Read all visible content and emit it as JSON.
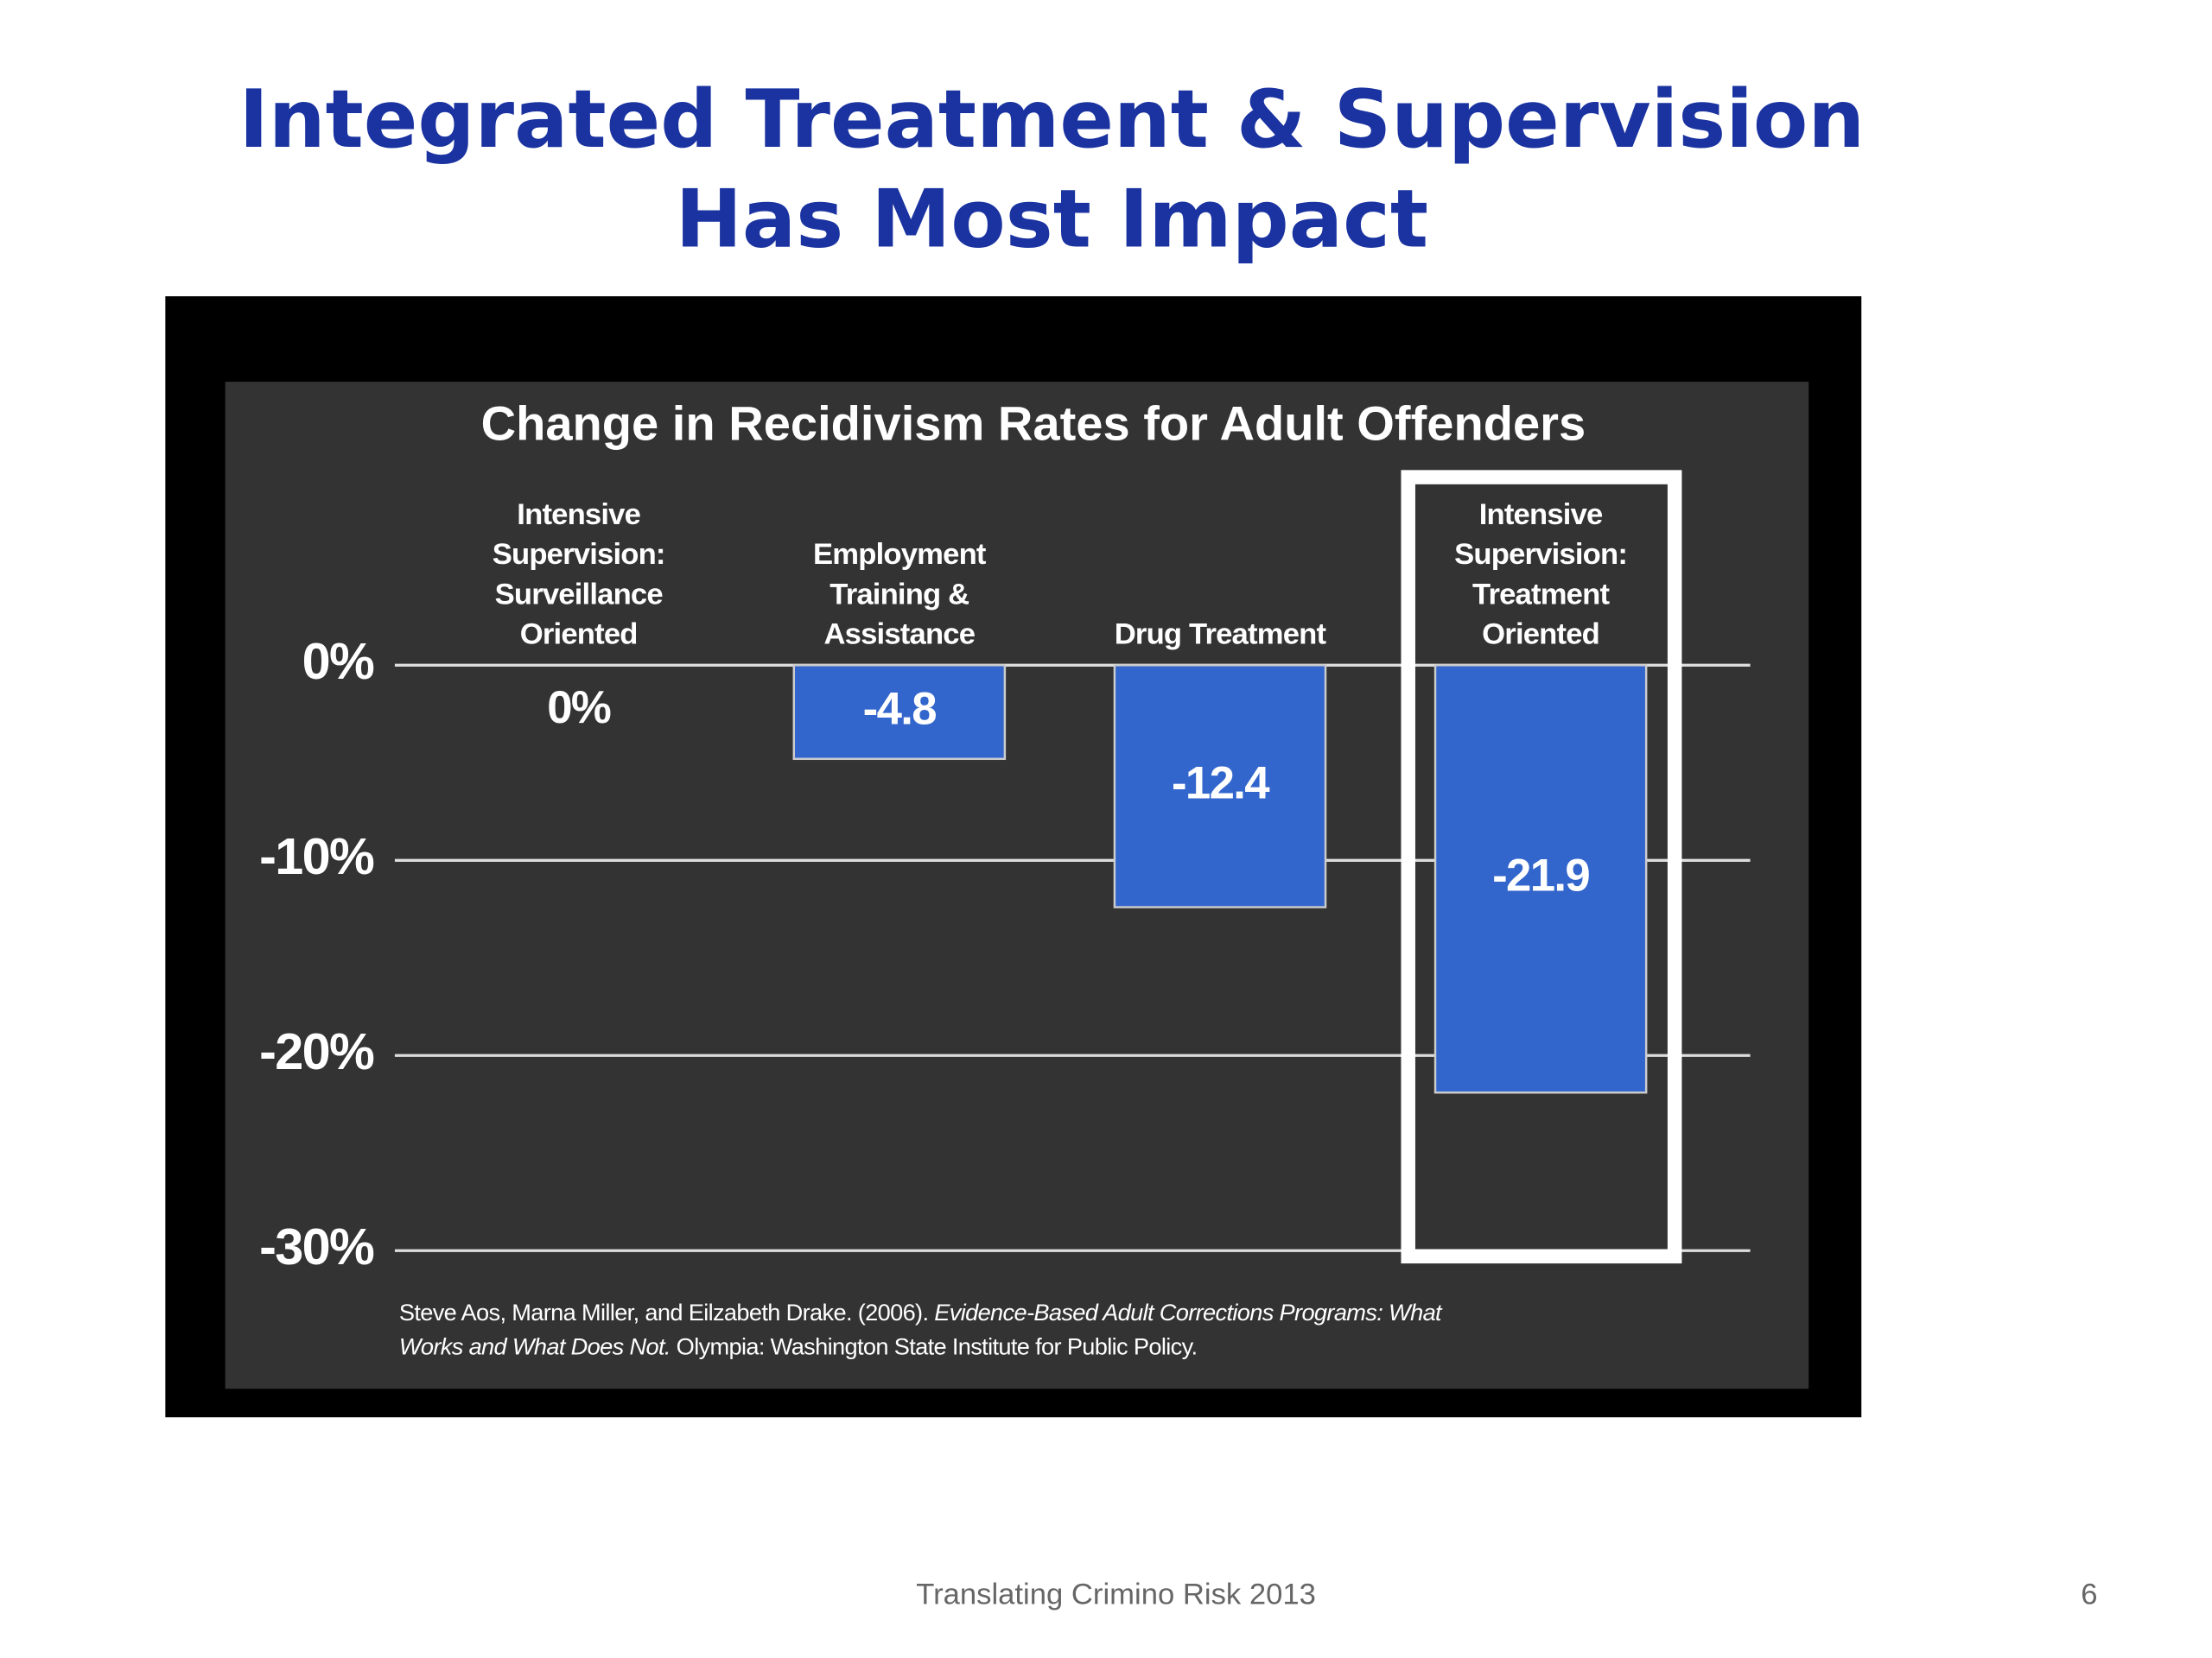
{
  "slide_title": [
    "Integrated Treatment & Supervision",
    "Has Most Impact"
  ],
  "chart_data": {
    "type": "bar",
    "title": "Change in Recidivism Rates for Adult Offenders",
    "categories": [
      "Intensive Supervision: Surveillance Oriented",
      "Employment Training & Assistance",
      "Drug Treatment",
      "Intensive Supervision: Treatment Oriented"
    ],
    "values": [
      0,
      -4.8,
      -12.4,
      -21.9
    ],
    "value_labels": [
      "0%",
      "-4.8",
      "-12.4",
      "-21.9"
    ],
    "color": "#3366cc",
    "ylim": [
      -30,
      0
    ],
    "yticks": [
      {
        "value": 0,
        "label": "0%"
      },
      {
        "value": -10,
        "label": "-10%"
      },
      {
        "value": -20,
        "label": "-20%"
      },
      {
        "value": -30,
        "label": "-30%"
      }
    ],
    "grid": true,
    "source": [
      "Steve Aos, Marna Miller, and Eilzabeth Drake. (2006). ",
      "Evidence-Based Adult Corrections Programs: What Works and What Does Not.",
      " Olympia: Washington State Institute for Public Policy."
    ]
  },
  "footer": {
    "text": "Translating Crimino Risk 2013",
    "page": "6"
  }
}
